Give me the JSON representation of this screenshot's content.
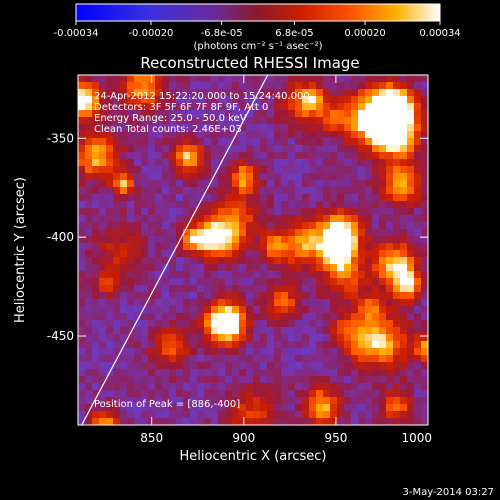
{
  "colorbar": {
    "tick_labels": [
      "-0.00034",
      "-0.00020",
      "-6.8e-05",
      "6.8e-05",
      "0.00020",
      "0.00034"
    ],
    "tick_values": [
      -0.00034,
      -0.0002,
      -6.8e-05,
      6.8e-05,
      0.0002,
      0.00034
    ],
    "range": [
      -0.00034,
      0.00034
    ],
    "units_label": "(photons cm⁻² s⁻¹ asec⁻²)"
  },
  "chart_data": {
    "type": "heatmap",
    "title": "Reconstructed RHESSI Image",
    "xlabel": "Heliocentric X (arcsec)",
    "ylabel": "Heliocentric Y (arcsec)",
    "xlim": [
      810,
      1000
    ],
    "ylim": [
      -495,
      -318
    ],
    "x_ticks": [
      850,
      900,
      950,
      1000
    ],
    "x_tick_labels": [
      "850",
      "900",
      "950",
      "1000"
    ],
    "y_ticks": [
      -350,
      -400,
      -450
    ],
    "y_tick_labels": [
      "-350",
      "-400",
      "-450"
    ],
    "annotations": [
      "24-Apr-2012 15:22:20.000 to 15:24:40.000",
      "Detectors: 3F 5F 6F 7F 8F 9F, Att 0",
      "Energy Range: 25.0 - 50.0 keV",
      "Clean     Total counts: 2.46E+03"
    ],
    "peak_label": "Position of Peak = [886,-400]",
    "peak": [
      886,
      -400
    ],
    "limb_line": {
      "x": [
        812,
        913
      ],
      "y": [
        -495,
        -318
      ]
    },
    "grid": false,
    "colormap_stops": [
      "#0000ff",
      "#5050ff",
      "#7733aa",
      "#9a1a3a",
      "#cc1f00",
      "#ff5a00",
      "#ffae00",
      "#ffffff"
    ]
  },
  "footer": {
    "timestamp": "3-May-2014 03:27"
  }
}
